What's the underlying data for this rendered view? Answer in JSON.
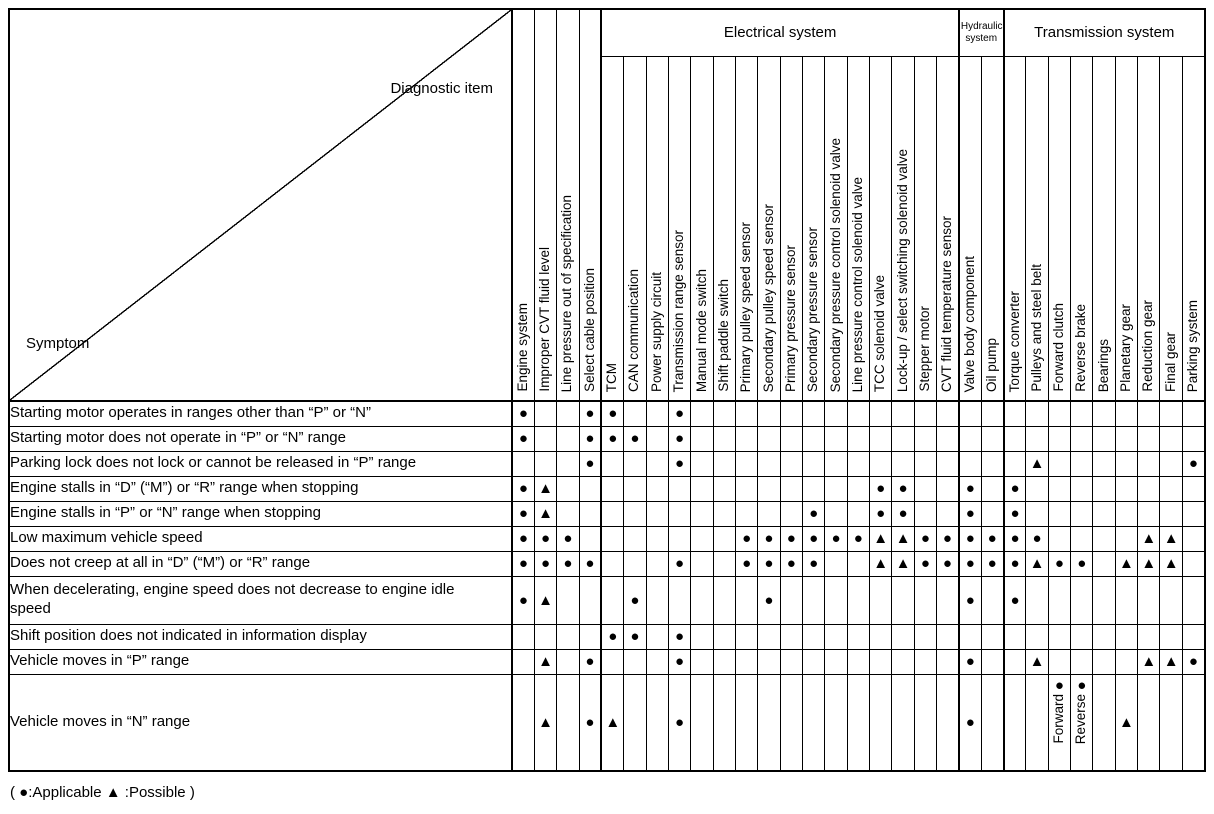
{
  "corner": {
    "top": "Diagnostic item",
    "bottom": "Symptom"
  },
  "marks_legend": {
    "applicable": "●",
    "possible": "▲"
  },
  "legend_text": "( ●:Applicable  ▲ :Possible )",
  "groups": [
    {
      "label": "Electrical system",
      "span": 16
    },
    {
      "label": "Hydraulic system",
      "span": 2
    },
    {
      "label": "Transmission system",
      "span": 9
    }
  ],
  "columns": [
    "Engine system",
    "Improper CVT fluid level",
    "Line pressure out of specification",
    "Select cable position",
    "TCM",
    "CAN communication",
    "Power supply circuit",
    "Transmission range sensor",
    "Manual mode switch",
    "Shift paddle switch",
    "Primary pulley speed sensor",
    "Secondary pulley speed sensor",
    "Primary pressure sensor",
    "Secondary pressure sensor",
    "Secondary pressure control solenoid valve",
    "Line pressure control solenoid valve",
    "TCC solenoid valve",
    "Lock-up / select switching solenoid valve",
    "Stepper motor",
    "CVT fluid temperature sensor",
    "Valve body component",
    "Oil pump",
    "Torque converter",
    "Pulleys and steel belt",
    "Forward clutch",
    "Reverse brake",
    "Bearings",
    "Planetary gear",
    "Reduction gear",
    "Final gear",
    "Parking system"
  ],
  "rows": [
    {
      "symptom": "Starting motor operates in ranges other than “P” or “N”",
      "marks": [
        "●",
        "",
        "",
        "●",
        "●",
        "",
        "",
        "●",
        "",
        "",
        "",
        "",
        "",
        "",
        "",
        "",
        "",
        "",
        "",
        "",
        "",
        "",
        "",
        "",
        "",
        "",
        "",
        "",
        "",
        "",
        ""
      ]
    },
    {
      "symptom": "Starting motor does not operate in “P” or “N” range",
      "marks": [
        "●",
        "",
        "",
        "●",
        "●",
        "●",
        "",
        "●",
        "",
        "",
        "",
        "",
        "",
        "",
        "",
        "",
        "",
        "",
        "",
        "",
        "",
        "",
        "",
        "",
        "",
        "",
        "",
        "",
        "",
        "",
        ""
      ]
    },
    {
      "symptom": "Parking lock does not lock or cannot be released in “P” range",
      "marks": [
        "",
        "",
        "",
        "●",
        "",
        "",
        "",
        "●",
        "",
        "",
        "",
        "",
        "",
        "",
        "",
        "",
        "",
        "",
        "",
        "",
        "",
        "",
        "",
        "▲",
        "",
        "",
        "",
        "",
        "",
        "",
        "●"
      ]
    },
    {
      "symptom": "Engine stalls in “D” (“M”) or “R” range when stopping",
      "marks": [
        "●",
        "▲",
        "",
        "",
        "",
        "",
        "",
        "",
        "",
        "",
        "",
        "",
        "",
        "",
        "",
        "",
        "●",
        "●",
        "",
        "",
        "●",
        "",
        "●",
        "",
        "",
        "",
        "",
        "",
        "",
        "",
        ""
      ]
    },
    {
      "symptom": "Engine stalls in “P” or “N” range when stopping",
      "marks": [
        "●",
        "▲",
        "",
        "",
        "",
        "",
        "",
        "",
        "",
        "",
        "",
        "",
        "",
        "●",
        "",
        "",
        "●",
        "●",
        "",
        "",
        "●",
        "",
        "●",
        "",
        "",
        "",
        "",
        "",
        "",
        "",
        ""
      ]
    },
    {
      "symptom": "Low maximum vehicle speed",
      "marks": [
        "●",
        "●",
        "●",
        "",
        "",
        "",
        "",
        "",
        "",
        "",
        "●",
        "●",
        "●",
        "●",
        "●",
        "●",
        "▲",
        "▲",
        "●",
        "●",
        "●",
        "●",
        "●",
        "●",
        "",
        "",
        "",
        "",
        "▲",
        "▲",
        ""
      ]
    },
    {
      "symptom": "Does not creep at all in “D” (“M”) or “R” range",
      "marks": [
        "●",
        "●",
        "●",
        "●",
        "",
        "",
        "",
        "●",
        "",
        "",
        "●",
        "●",
        "●",
        "●",
        "",
        "",
        "▲",
        "▲",
        "●",
        "●",
        "●",
        "●",
        "●",
        "▲",
        "●",
        "●",
        "",
        "▲",
        "▲",
        "▲",
        ""
      ]
    },
    {
      "symptom": "When decelerating, engine speed does not decrease to engine idle speed",
      "marks": [
        "●",
        "▲",
        "",
        "",
        "",
        "●",
        "",
        "",
        "",
        "",
        "",
        "●",
        "",
        "",
        "",
        "",
        "",
        "",
        "",
        "",
        "●",
        "",
        "●",
        "",
        "",
        "",
        "",
        "",
        "",
        "",
        ""
      ]
    },
    {
      "symptom": "Shift position does not indicated in information display",
      "marks": [
        "",
        "",
        "",
        "",
        "●",
        "●",
        "",
        "●",
        "",
        "",
        "",
        "",
        "",
        "",
        "",
        "",
        "",
        "",
        "",
        "",
        "",
        "",
        "",
        "",
        "",
        "",
        "",
        "",
        "",
        "",
        ""
      ]
    },
    {
      "symptom": "Vehicle moves in “P” range",
      "marks": [
        "",
        "▲",
        "",
        "●",
        "",
        "",
        "",
        "●",
        "",
        "",
        "",
        "",
        "",
        "",
        "",
        "",
        "",
        "",
        "",
        "",
        "●",
        "",
        "",
        "▲",
        "",
        "",
        "",
        "",
        "▲",
        "▲",
        "●"
      ]
    },
    {
      "symptom": "Vehicle moves in “N” range",
      "marks": [
        "",
        "▲",
        "",
        "●",
        "▲",
        "",
        "",
        "●",
        "",
        "",
        "",
        "",
        "",
        "",
        "",
        "",
        "",
        "",
        "",
        "",
        "●",
        "",
        "",
        "",
        {
          "mark": "●",
          "label": "Forward"
        },
        {
          "mark": "●",
          "label": "Reverse"
        },
        "",
        "▲",
        "",
        "",
        ""
      ]
    }
  ]
}
